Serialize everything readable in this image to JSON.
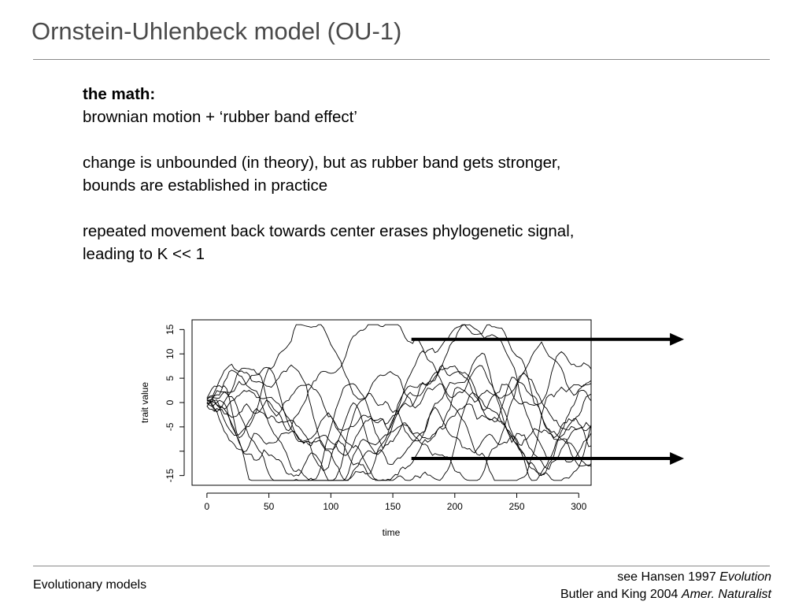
{
  "slide": {
    "title": "Ornstein-Uhlenbeck model (OU-1)",
    "heading": "the math:",
    "line1": "brownian motion +",
    "line1_quote": "‘rubber band effect’",
    "para2_line1": "change is unbounded (in theory), but as rubber band gets stronger,",
    "para2_line2": "bounds are established in practice",
    "para3_line1": "repeated movement back towards center erases phylogenetic signal,",
    "para3_line2": "leading to K << 1"
  },
  "footer": {
    "left": "Evolutionary models",
    "ref1_text": "see Hansen 1997",
    "ref1_journal": "Evolution",
    "ref2_text": "Butler and King 2004",
    "ref2_journal": "Amer. Naturalist"
  },
  "chart_data": {
    "type": "line",
    "xlabel": "time",
    "ylabel": "trait value",
    "xlim": [
      -12,
      310
    ],
    "ylim": [
      -17,
      17
    ],
    "x_ticks": [
      "0",
      "50",
      "100",
      "150",
      "200",
      "250",
      "300"
    ],
    "y_ticks": [
      "-15",
      "-5",
      "0",
      "5",
      "10",
      "15"
    ],
    "grid": false,
    "legend": "none",
    "n_series": 12,
    "time_end": 310,
    "bound_arrows": [
      {
        "x_start": 165,
        "x_end": 385,
        "y": 13
      },
      {
        "x_start": 165,
        "x_end": 385,
        "y": -11.5
      }
    ],
    "line_color": "#000000"
  }
}
